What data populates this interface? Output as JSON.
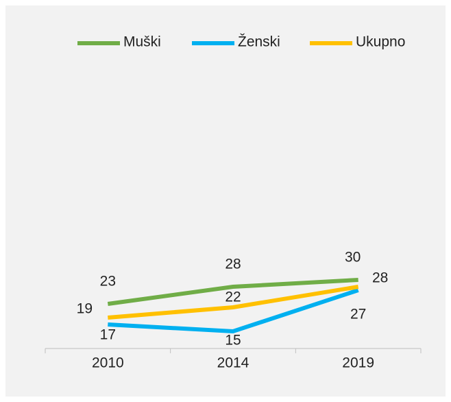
{
  "chart_data": {
    "type": "line",
    "categories": [
      "2010",
      "2014",
      "2019"
    ],
    "series": [
      {
        "name": "Muški",
        "color": "#70ad47",
        "values": [
          23,
          28,
          30
        ]
      },
      {
        "name": "Ženski",
        "color": "#00b0f0",
        "values": [
          17,
          15,
          27
        ]
      },
      {
        "name": "Ukupno",
        "color": "#ffc000",
        "values": [
          19,
          22,
          28
        ]
      }
    ],
    "ylim": [
      10,
      90
    ],
    "legend": "top"
  }
}
